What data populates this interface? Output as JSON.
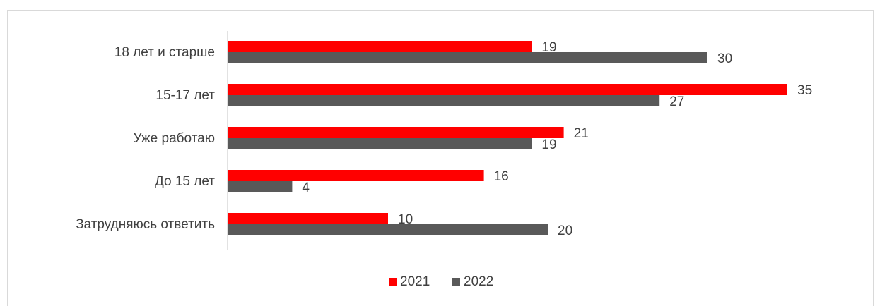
{
  "chart_data": {
    "type": "bar",
    "orientation": "horizontal",
    "categories": [
      "18 лет и старше",
      "15-17 лет",
      "Уже работаю",
      "До 15 лет",
      "Затрудняюсь ответить"
    ],
    "series": [
      {
        "name": "2021",
        "values": [
          19,
          35,
          21,
          16,
          10
        ],
        "color": "#ff0000"
      },
      {
        "name": "2022",
        "values": [
          30,
          27,
          19,
          4,
          20
        ],
        "color": "#595959"
      }
    ],
    "xlim": [
      0,
      36
    ],
    "grid": false,
    "legend": "bottom-center"
  }
}
